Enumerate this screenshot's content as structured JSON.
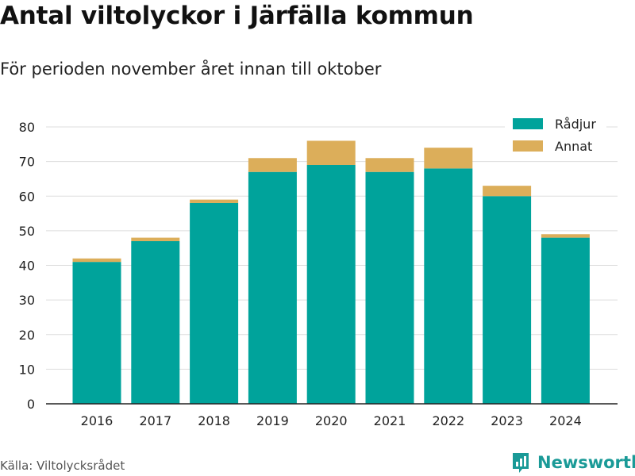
{
  "header": {
    "title": "Antal viltolyckor i Järfälla kommun",
    "subtitle": "För perioden november året innan till oktober"
  },
  "footer": {
    "source": "Källa: Viltolycksrådet",
    "brand": "Newsworthy"
  },
  "colors": {
    "radjur": "#00a39b",
    "annat": "#dcae5a",
    "brand": "#1a9a97"
  },
  "chart_data": {
    "type": "bar",
    "stacked": true,
    "title": "Antal viltolyckor i Järfälla kommun",
    "subtitle": "För perioden november året innan till oktober",
    "xlabel": "",
    "ylabel": "",
    "categories": [
      "2016",
      "2017",
      "2018",
      "2019",
      "2020",
      "2021",
      "2022",
      "2023",
      "2024"
    ],
    "series": [
      {
        "name": "Rådjur",
        "values": [
          41,
          47,
          58,
          67,
          69,
          67,
          68,
          60,
          48
        ]
      },
      {
        "name": "Annat",
        "values": [
          1,
          1,
          1,
          4,
          7,
          4,
          6,
          3,
          1
        ]
      }
    ],
    "ylim": [
      0,
      80
    ],
    "yticks": [
      0,
      10,
      20,
      30,
      40,
      50,
      60,
      70,
      80
    ],
    "grid": true,
    "legend": "top-right"
  }
}
